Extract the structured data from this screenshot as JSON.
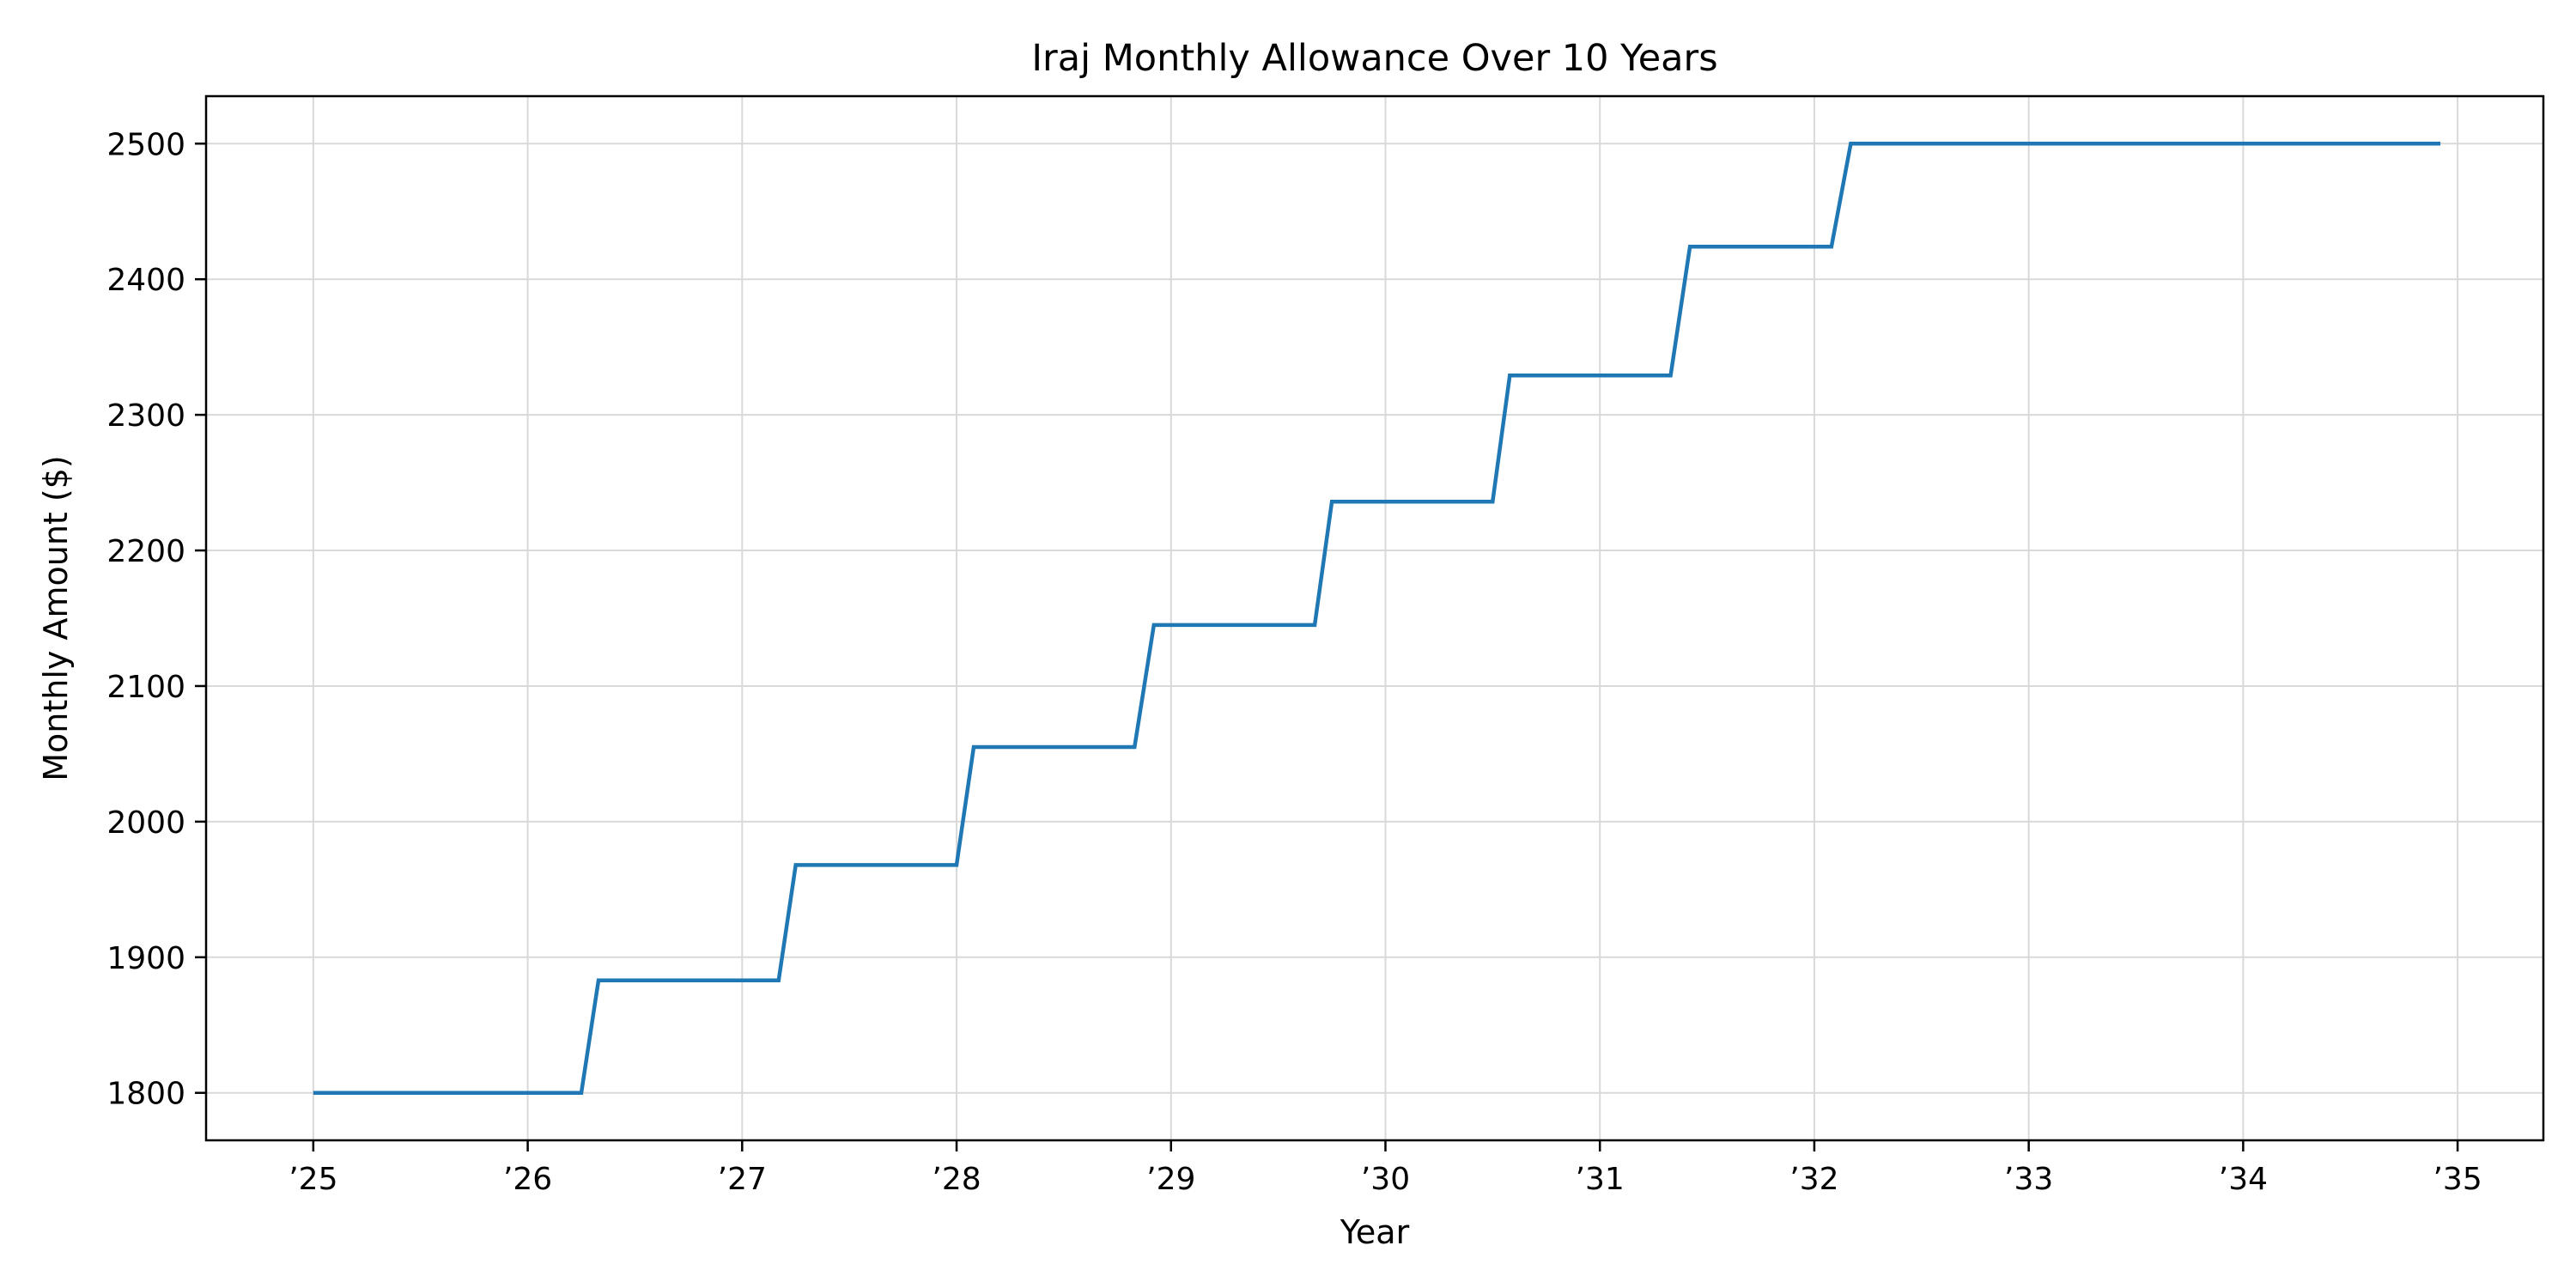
{
  "chart_data": {
    "type": "line",
    "title": "Iraj Monthly Allowance Over 10 Years",
    "xlabel": "Year",
    "ylabel": "Monthly Amount ($)",
    "x_ticks": [
      {
        "value": 2025,
        "label": "’25"
      },
      {
        "value": 2026,
        "label": "’26"
      },
      {
        "value": 2027,
        "label": "’27"
      },
      {
        "value": 2028,
        "label": "’28"
      },
      {
        "value": 2029,
        "label": "’29"
      },
      {
        "value": 2030,
        "label": "’30"
      },
      {
        "value": 2031,
        "label": "’31"
      },
      {
        "value": 2032,
        "label": "’32"
      },
      {
        "value": 2033,
        "label": "’33"
      },
      {
        "value": 2034,
        "label": "’34"
      },
      {
        "value": 2035,
        "label": "’35"
      }
    ],
    "y_ticks": [
      1800,
      1900,
      2000,
      2100,
      2200,
      2300,
      2400,
      2500
    ],
    "xlim": [
      2024.5,
      2035.4
    ],
    "ylim": [
      1765,
      2535
    ],
    "grid": true,
    "series": [
      {
        "color": "#1f77b4",
        "x": [
          2025.0,
          2026.25,
          2026.33,
          2027.17,
          2027.25,
          2028.0,
          2028.08,
          2028.83,
          2028.92,
          2029.67,
          2029.75,
          2030.5,
          2030.58,
          2031.33,
          2031.42,
          2032.08,
          2032.17,
          2034.92
        ],
        "y": [
          1800,
          1800,
          1883,
          1883,
          1968,
          1968,
          2055,
          2055,
          2145,
          2145,
          2236,
          2236,
          2329,
          2329,
          2424,
          2424,
          2500,
          2500
        ]
      }
    ]
  }
}
